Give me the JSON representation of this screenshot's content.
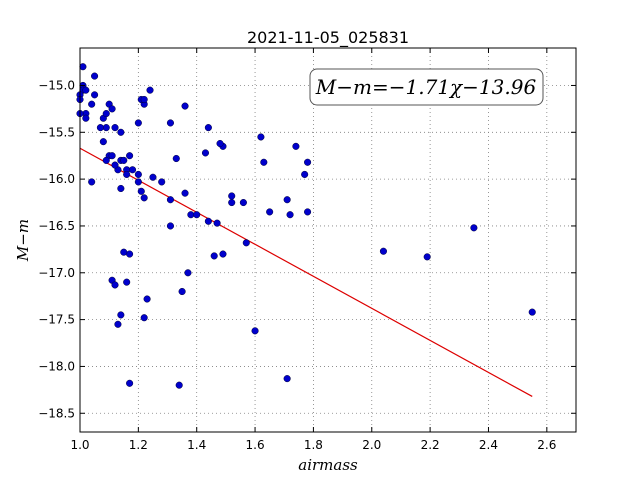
{
  "chart_data": {
    "type": "scatter",
    "title": "2021-11-05_025831",
    "xlabel": "airmass",
    "ylabel": "M−m",
    "xlim": [
      1.0,
      2.7
    ],
    "ylim": [
      -18.7,
      -14.6
    ],
    "y_inverted": true,
    "grid": true,
    "xticks": [
      1.0,
      1.2,
      1.4,
      1.6,
      1.8,
      2.0,
      2.2,
      2.4,
      2.6
    ],
    "xtick_labels": [
      "1.0",
      "1.2",
      "1.4",
      "1.6",
      "1.8",
      "2.0",
      "2.2",
      "2.4",
      "2.6"
    ],
    "yticks": [
      -15.0,
      -15.5,
      -16.0,
      -16.5,
      -17.0,
      -17.5,
      -18.0,
      -18.5
    ],
    "ytick_labels": [
      "−15.0",
      "−15.5",
      "−16.0",
      "−16.5",
      "−17.0",
      "−17.5",
      "−18.0",
      "−18.5"
    ],
    "annotation": "M−m=−1.71χ−13.96",
    "point_color": "#0000cc",
    "fit_color": "#dd0000",
    "fit_line": {
      "slope": -1.71,
      "intercept": -13.96,
      "x_range": [
        1.0,
        2.55
      ]
    },
    "series": [
      {
        "x": [
          1.01,
          1.01,
          1.01,
          1.02,
          1.0,
          1.0,
          1.02,
          1.05,
          1.05,
          1.04,
          1.0,
          1.02,
          1.08,
          1.1,
          1.11,
          1.12,
          1.09,
          1.07,
          1.08,
          1.1,
          1.14,
          1.09,
          1.11,
          1.13,
          1.14,
          1.16,
          1.12,
          1.15,
          1.17,
          1.18,
          1.2,
          1.16,
          1.09,
          1.2,
          1.22,
          1.21,
          1.22,
          1.24,
          1.22,
          1.25,
          1.2,
          1.21,
          1.14,
          1.28,
          1.31,
          1.31,
          1.33,
          1.36,
          1.38,
          1.35,
          1.37,
          1.4,
          1.43,
          1.44,
          1.44,
          1.47,
          1.49,
          1.52,
          1.52,
          1.56,
          1.46,
          1.48,
          1.49,
          1.57,
          1.62,
          1.63,
          1.65,
          1.71,
          1.72,
          1.74,
          1.77,
          1.78,
          1.78,
          1.04,
          1.17,
          1.15,
          1.16,
          1.11,
          1.12,
          1.14,
          1.13,
          1.23,
          1.22,
          1.17,
          1.31,
          1.34,
          1.36,
          1.6,
          1.71,
          2.04,
          2.19,
          2.35,
          2.55
        ],
        "y": [
          -14.8,
          -15.0,
          -15.05,
          -15.05,
          -15.1,
          -15.15,
          -15.3,
          -14.9,
          -15.1,
          -15.2,
          -15.3,
          -15.35,
          -15.35,
          -15.2,
          -15.25,
          -15.45,
          -15.45,
          -15.45,
          -15.6,
          -15.75,
          -15.5,
          -15.8,
          -15.75,
          -15.9,
          -15.8,
          -15.9,
          -15.85,
          -15.8,
          -15.75,
          -15.9,
          -15.95,
          -15.95,
          -15.3,
          -15.4,
          -15.2,
          -15.15,
          -15.15,
          -15.05,
          -16.2,
          -15.98,
          -16.03,
          -16.13,
          -16.1,
          -16.03,
          -16.22,
          -15.4,
          -15.78,
          -16.15,
          -16.38,
          -17.2,
          -17.0,
          -16.38,
          -15.72,
          -15.45,
          -16.45,
          -16.47,
          -15.65,
          -16.18,
          -16.25,
          -16.25,
          -16.82,
          -15.62,
          -16.8,
          -16.68,
          -15.55,
          -15.82,
          -16.35,
          -16.22,
          -16.38,
          -15.65,
          -15.95,
          -15.82,
          -16.35,
          -16.03,
          -16.8,
          -16.78,
          -17.1,
          -17.08,
          -17.13,
          -17.45,
          -17.55,
          -17.28,
          -17.48,
          -18.18,
          -16.5,
          -18.2,
          -15.22,
          -17.62,
          -18.13,
          -16.77,
          -16.83,
          -16.52,
          -17.42
        ]
      }
    ]
  }
}
